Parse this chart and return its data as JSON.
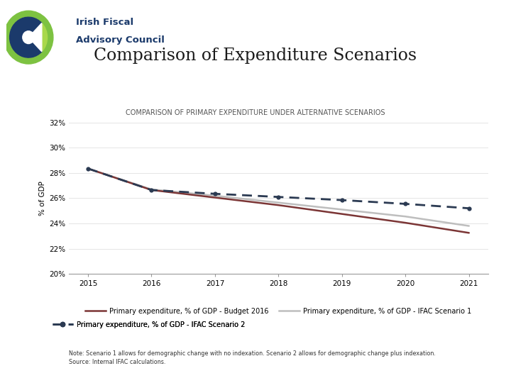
{
  "title_main": "Comparison of Expenditure Scenarios",
  "title_sub": "COMPARISON OF PRIMARY EXPENDITURE UNDER ALTERNATIVE SCENARIOS",
  "years": [
    2015,
    2016,
    2017,
    2018,
    2019,
    2020,
    2021
  ],
  "budget_2016": [
    28.35,
    26.65,
    26.05,
    25.45,
    24.75,
    24.05,
    23.25
  ],
  "ifac_scenario1": [
    28.35,
    26.7,
    26.2,
    25.65,
    25.1,
    24.55,
    23.8
  ],
  "ifac_scenario2": [
    28.35,
    26.65,
    26.35,
    26.1,
    25.85,
    25.55,
    25.2
  ],
  "ylim": [
    20,
    32
  ],
  "yticks": [
    20,
    22,
    24,
    26,
    28,
    30,
    32
  ],
  "ytick_labels": [
    "20%",
    "22%",
    "24%",
    "26%",
    "28%",
    "30%",
    "32%"
  ],
  "ylabel": "% of GDP",
  "color_budget": "#7B3535",
  "color_scenario1": "#BEBEBE",
  "color_scenario2": "#2B3A52",
  "legend_budget": "Primary expenditure, % of GDP - Budget 2016",
  "legend_s1": "Primary expenditure, % of GDP - IFAC Scenario 1",
  "legend_s2": "Primary expenditure, % of GDP - IFAC Scenario 2",
  "note_line1": "Note: Scenario 1 allows for demographic change with no indexation. Scenario 2 allows for demographic change plus indexation.",
  "note_line2": "Source: Internal IFAC calculations.",
  "background_color": "#FFFFFF",
  "logo_green": "#7DC241",
  "logo_blue": "#1B3A6B",
  "logo_text_color": "#1B3A6B",
  "title_color": "#1A1A1A",
  "sub_title_color": "#555555"
}
